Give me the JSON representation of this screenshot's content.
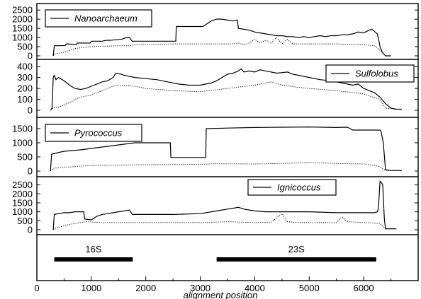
{
  "chart_data": [
    {
      "type": "line",
      "legend": "Nanoarchaeum",
      "legend_position": "top-left",
      "xlim": [
        0,
        7000
      ],
      "ylim": [
        0,
        2700
      ],
      "yticks": [
        "0",
        "500",
        "1000",
        "1500",
        "2000",
        "2500"
      ],
      "series": [
        {
          "style": "solid",
          "x": [
            300,
            320,
            520,
            540,
            730,
            740,
            980,
            1000,
            1200,
            1280,
            1350,
            1450,
            1550,
            1650,
            1700,
            1750,
            2000,
            2550,
            2560,
            3050,
            3100,
            3200,
            3300,
            3400,
            3500,
            3600,
            3680,
            3700,
            3800,
            3900,
            4000,
            4100,
            4200,
            4300,
            4400,
            4500,
            4600,
            4700,
            4800,
            4900,
            5000,
            5100,
            5200,
            5300,
            5400,
            5500,
            5600,
            5700,
            5800,
            5900,
            6000,
            6100,
            6150,
            6250,
            6280,
            6300,
            6340,
            6400,
            6500
          ],
          "y": [
            0,
            550,
            560,
            650,
            620,
            700,
            700,
            800,
            800,
            850,
            850,
            880,
            900,
            1000,
            1000,
            800,
            800,
            800,
            1600,
            1600,
            1700,
            1900,
            2000,
            2000,
            1950,
            1900,
            1950,
            1500,
            1450,
            1400,
            1300,
            1250,
            1200,
            1150,
            1100,
            1100,
            1050,
            1050,
            1000,
            1050,
            1000,
            1050,
            1100,
            1050,
            1100,
            1100,
            1150,
            1150,
            1200,
            1300,
            1250,
            1400,
            1450,
            1200,
            800,
            500,
            200,
            0,
            0
          ]
        },
        {
          "style": "dotted",
          "x": [
            300,
            330,
            500,
            700,
            1000,
            1500,
            1700,
            1800,
            2500,
            3000,
            3600,
            3700,
            3800,
            3900,
            4000,
            4100,
            4200,
            4300,
            4400,
            4500,
            4600,
            4700,
            5000,
            5500,
            6000,
            6200,
            6300,
            6400
          ],
          "y": [
            0,
            100,
            200,
            400,
            500,
            550,
            550,
            600,
            650,
            650,
            650,
            700,
            600,
            700,
            900,
            700,
            850,
            700,
            1000,
            650,
            900,
            650,
            650,
            650,
            600,
            550,
            300,
            0
          ]
        }
      ]
    },
    {
      "type": "line",
      "legend": "Sulfolobus",
      "legend_position": "top-right",
      "xlim": [
        0,
        7000
      ],
      "ylim": [
        0,
        440
      ],
      "yticks": [
        "0",
        "100",
        "200",
        "300",
        "400"
      ],
      "series": [
        {
          "style": "solid",
          "x": [
            250,
            280,
            300,
            320,
            350,
            400,
            500,
            600,
            700,
            800,
            900,
            1000,
            1100,
            1200,
            1300,
            1400,
            1450,
            1550,
            1600,
            1700,
            1800,
            2000,
            2200,
            2400,
            2600,
            2800,
            3000,
            3200,
            3300,
            3400,
            3500,
            3600,
            3700,
            3750,
            3800,
            3900,
            4000,
            4100,
            4200,
            4300,
            4400,
            4500,
            4600,
            4700,
            4800,
            4900,
            5000,
            5200,
            5400,
            5600,
            5800,
            5900,
            6000,
            6100,
            6200,
            6300,
            6400,
            6500,
            6600,
            6700
          ],
          "y": [
            0,
            20,
            300,
            320,
            280,
            300,
            270,
            230,
            200,
            190,
            200,
            220,
            240,
            260,
            270,
            300,
            340,
            330,
            320,
            310,
            300,
            290,
            280,
            260,
            240,
            230,
            230,
            250,
            270,
            300,
            330,
            340,
            360,
            380,
            350,
            360,
            350,
            370,
            360,
            350,
            340,
            345,
            350,
            330,
            320,
            310,
            300,
            280,
            270,
            250,
            230,
            240,
            200,
            180,
            160,
            120,
            60,
            20,
            10,
            10
          ]
        },
        {
          "style": "dotted",
          "x": [
            250,
            300,
            400,
            500,
            600,
            700,
            800,
            900,
            1000,
            1100,
            1200,
            1300,
            1400,
            1500,
            1800,
            2000,
            2500,
            3000,
            3500,
            4000,
            4300,
            4500,
            4800,
            5000,
            5500,
            6000,
            6300,
            6400,
            6600,
            6700
          ],
          "y": [
            0,
            20,
            30,
            50,
            70,
            100,
            120,
            130,
            140,
            160,
            180,
            200,
            220,
            230,
            220,
            200,
            180,
            170,
            200,
            230,
            260,
            230,
            210,
            200,
            180,
            150,
            100,
            20,
            10,
            10
          ]
        }
      ]
    },
    {
      "type": "line",
      "legend": "Pyrococcus",
      "legend_position": "top-left",
      "xlim": [
        0,
        7000
      ],
      "ylim": [
        0,
        1800
      ],
      "yticks": [
        "0",
        "500",
        "1000",
        "1500"
      ],
      "series": [
        {
          "style": "solid",
          "x": [
            250,
            270,
            500,
            800,
            1200,
            1600,
            1800,
            2000,
            2450,
            2460,
            3100,
            3110,
            3500,
            4000,
            4500,
            5000,
            5500,
            5700,
            5800,
            6300,
            6320,
            6360,
            6400,
            6500,
            6700
          ],
          "y": [
            0,
            600,
            700,
            750,
            850,
            950,
            1000,
            1000,
            1000,
            480,
            480,
            1500,
            1520,
            1540,
            1550,
            1560,
            1540,
            1550,
            1450,
            1450,
            1400,
            1000,
            50,
            20,
            20
          ]
        },
        {
          "style": "dotted",
          "x": [
            250,
            300,
            1000,
            1800,
            2500,
            3100,
            3200,
            4000,
            4500,
            5000,
            5500,
            6000,
            6200,
            6300,
            6400,
            6700
          ],
          "y": [
            0,
            100,
            200,
            220,
            230,
            240,
            260,
            250,
            270,
            300,
            270,
            250,
            200,
            150,
            20,
            20
          ]
        }
      ]
    },
    {
      "type": "line",
      "legend": "Ignicoccus",
      "legend_position": "top-right",
      "xlim": [
        0,
        7000
      ],
      "ylim": [
        0,
        2800
      ],
      "yticks": [
        "0",
        "500",
        "1000",
        "1500",
        "2000",
        "2500"
      ],
      "series": [
        {
          "style": "solid",
          "x": [
            300,
            320,
            400,
            500,
            600,
            700,
            800,
            860,
            880,
            1000,
            1100,
            1200,
            1300,
            1400,
            1500,
            1600,
            1700,
            1750,
            2000,
            2500,
            3000,
            3300,
            3400,
            3500,
            3600,
            3700,
            3800,
            3900,
            4000,
            4200,
            4500,
            5000,
            5500,
            6000,
            6200,
            6250,
            6270,
            6300,
            6320,
            6350,
            6380,
            6400,
            6600
          ],
          "y": [
            0,
            850,
            900,
            950,
            950,
            1000,
            1000,
            1000,
            600,
            550,
            750,
            850,
            900,
            950,
            1000,
            1050,
            1100,
            850,
            850,
            850,
            900,
            1050,
            1100,
            1150,
            1200,
            1250,
            1150,
            1100,
            1050,
            1000,
            1000,
            1000,
            950,
            950,
            950,
            1000,
            1200,
            2700,
            2650,
            2500,
            600,
            50,
            50
          ]
        },
        {
          "style": "dotted",
          "x": [
            300,
            350,
            600,
            900,
            1200,
            1800,
            2500,
            3000,
            3500,
            4000,
            4300,
            4500,
            4600,
            4700,
            5000,
            5500,
            5600,
            5700,
            6000,
            6300,
            6400,
            6600
          ],
          "y": [
            0,
            100,
            300,
            450,
            400,
            400,
            400,
            400,
            450,
            400,
            420,
            900,
            450,
            420,
            400,
            400,
            700,
            450,
            400,
            350,
            50,
            50
          ]
        }
      ]
    },
    {
      "type": "bar",
      "orientation": "horizontal",
      "xlim": [
        0,
        7000
      ],
      "xticks": [
        "0",
        "1000",
        "2000",
        "3000",
        "4000",
        "5000",
        "6000"
      ],
      "xlabel": "alignment position",
      "regions": [
        {
          "label": "16S",
          "start": 320,
          "end": 1760
        },
        {
          "label": "23S",
          "start": 3300,
          "end": 6230
        }
      ]
    }
  ]
}
